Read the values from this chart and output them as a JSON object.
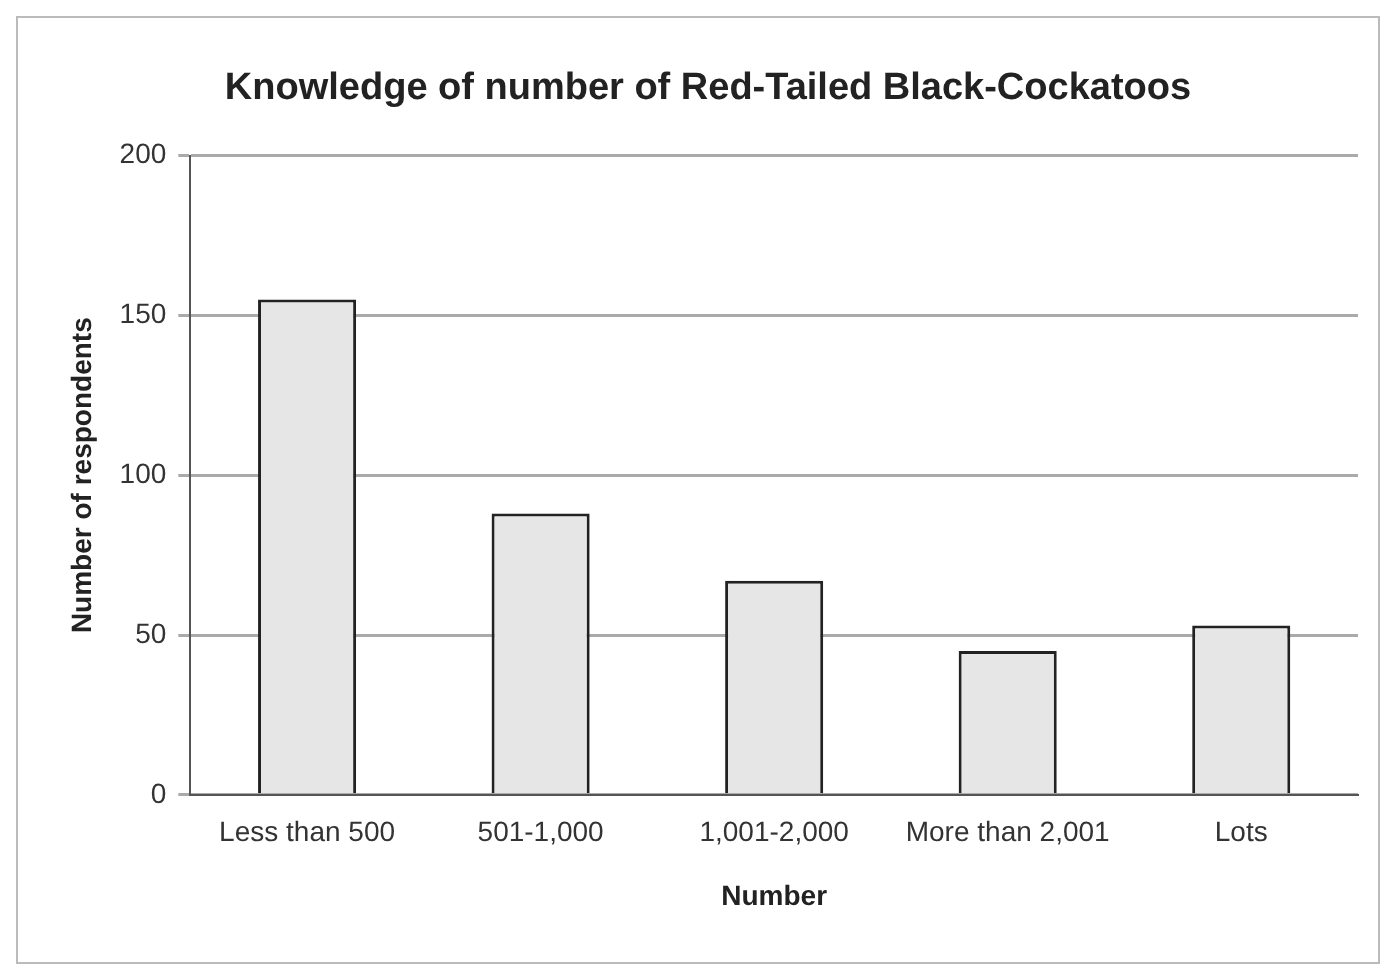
{
  "chart_data": {
    "type": "bar",
    "title": "Knowledge of number of Red-Tailed Black-Cockatoos",
    "xlabel": "Number",
    "ylabel": "Number of respondents",
    "categories": [
      "Less than 500",
      "501-1,000",
      "1,001-2,000",
      "More than 2,001",
      "Lots"
    ],
    "values": [
      155,
      88,
      67,
      45,
      53
    ],
    "color": "#e6e6e6",
    "ylim": [
      0,
      200
    ],
    "yticks": [
      0,
      50,
      100,
      150,
      200
    ],
    "grid": "y",
    "legend": false
  }
}
